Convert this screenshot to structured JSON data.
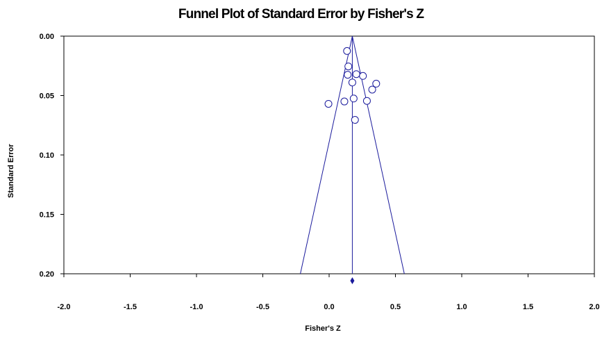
{
  "chart_data": {
    "type": "scatter",
    "title": "Funnel Plot of Standard Error by Fisher's Z",
    "xlabel": "Fisher's Z",
    "ylabel": "Standard Error",
    "xlim": [
      -2.0,
      2.0
    ],
    "ylim": [
      0.0,
      0.2
    ],
    "y_inverted": true,
    "x_ticks": [
      "-2.0",
      "-1.5",
      "-1.0",
      "-0.5",
      "0.0",
      "0.5",
      "1.0",
      "1.5",
      "2.0"
    ],
    "y_ticks": [
      "0.00",
      "0.05",
      "0.10",
      "0.15",
      "0.20"
    ],
    "grid": false,
    "legend": "none",
    "summary_effect": 0.175,
    "funnel": {
      "apex": [
        0.175,
        0.0
      ],
      "left_base": [
        -0.217,
        0.2
      ],
      "right_base": [
        0.567,
        0.2
      ]
    },
    "points": [
      {
        "x": 0.135,
        "y": 0.0125
      },
      {
        "x": 0.145,
        "y": 0.0255
      },
      {
        "x": 0.14,
        "y": 0.0325
      },
      {
        "x": 0.205,
        "y": 0.032
      },
      {
        "x": 0.255,
        "y": 0.0335
      },
      {
        "x": 0.175,
        "y": 0.039
      },
      {
        "x": 0.355,
        "y": 0.04
      },
      {
        "x": 0.325,
        "y": 0.045
      },
      {
        "x": 0.185,
        "y": 0.0525
      },
      {
        "x": 0.285,
        "y": 0.0545
      },
      {
        "x": 0.115,
        "y": 0.055
      },
      {
        "x": -0.005,
        "y": 0.057
      },
      {
        "x": 0.195,
        "y": 0.0705
      }
    ],
    "colors": {
      "funnel_line": "#1a1a9c",
      "marker_stroke": "#1a1a9c",
      "diamond": "#1a1a9c",
      "axis": "#000000"
    }
  }
}
